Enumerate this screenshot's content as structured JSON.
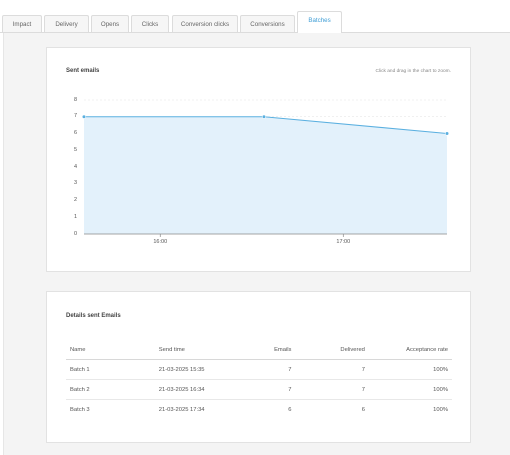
{
  "tabs": [
    {
      "label": "Impact",
      "active": false
    },
    {
      "label": "Delivery",
      "active": false
    },
    {
      "label": "Opens",
      "active": false
    },
    {
      "label": "Clicks",
      "active": false
    },
    {
      "label": "Conversion clicks",
      "active": false
    },
    {
      "label": "Conversions",
      "active": false
    },
    {
      "label": "Batches",
      "active": true
    }
  ],
  "sent_emails_card": {
    "title": "Sent emails",
    "zoom_hint": "Click and drag in the chart to zoom."
  },
  "chart_data": {
    "type": "area",
    "title": "Sent emails",
    "x": [
      "15:35",
      "16:34",
      "17:34"
    ],
    "x_ticks": [
      "16:00",
      "17:00"
    ],
    "y_ticks": [
      "0",
      "1",
      "2",
      "3",
      "4",
      "5",
      "6",
      "7",
      "8"
    ],
    "ylim": [
      0,
      8
    ],
    "series": [
      {
        "values": [
          7,
          7,
          6
        ]
      }
    ],
    "grid": true,
    "colors": {
      "line": "#5bb0e0",
      "fill": "#e3f1fb"
    }
  },
  "details_card": {
    "title": "Details sent Emails",
    "columns": [
      "Name",
      "Send time",
      "Emails",
      "Delivered",
      "Acceptance rate"
    ],
    "rows": [
      [
        "Batch 1",
        "21-03-2025 15:35",
        "7",
        "7",
        "100%"
      ],
      [
        "Batch 2",
        "21-03-2025 16:34",
        "7",
        "7",
        "100%"
      ],
      [
        "Batch 3",
        "21-03-2025 17:34",
        "6",
        "6",
        "100%"
      ]
    ]
  }
}
